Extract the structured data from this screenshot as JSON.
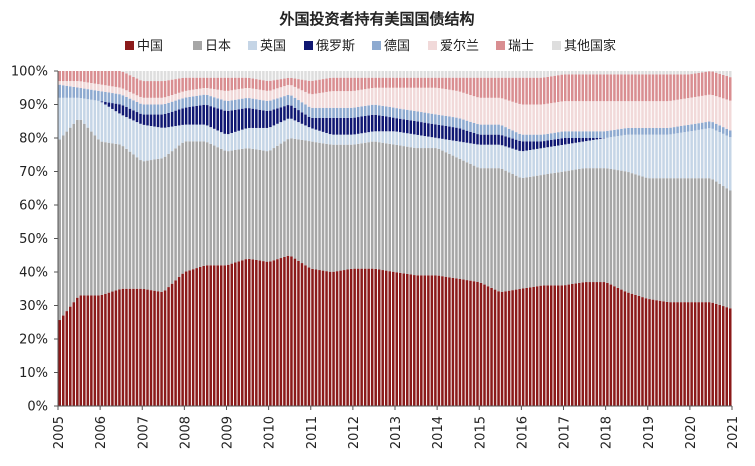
{
  "chart_data": {
    "type": "area",
    "stacked": true,
    "normalized_to": 100,
    "title": "外国投资者持有美国国债结构",
    "legend_position": "top",
    "x_ticks": [
      "2005",
      "2006",
      "2007",
      "2008",
      "2009",
      "2010",
      "2011",
      "2012",
      "2013",
      "2014",
      "2015",
      "2016",
      "2017",
      "2018",
      "2019",
      "2020",
      "2021"
    ],
    "y_ticks": [
      "0%",
      "10%",
      "20%",
      "30%",
      "40%",
      "50%",
      "60%",
      "70%",
      "80%",
      "90%",
      "100%"
    ],
    "ylim": [
      0,
      100
    ],
    "x": [
      2005.0,
      2005.5,
      2006.0,
      2006.5,
      2007.0,
      2007.5,
      2008.0,
      2008.5,
      2009.0,
      2009.5,
      2010.0,
      2010.5,
      2011.0,
      2011.5,
      2012.0,
      2012.5,
      2013.0,
      2013.5,
      2014.0,
      2014.5,
      2015.0,
      2015.5,
      2016.0,
      2016.5,
      2017.0,
      2017.5,
      2018.0,
      2018.5,
      2019.0,
      2019.5,
      2020.0,
      2020.5,
      2021.0
    ],
    "series": [
      {
        "name": "中国",
        "color": "#8b1a1a",
        "values": [
          25,
          33,
          33,
          35,
          35,
          34,
          40,
          42,
          42,
          44,
          43,
          45,
          41,
          40,
          41,
          41,
          40,
          39,
          39,
          38,
          37,
          34,
          35,
          36,
          36,
          37,
          37,
          34,
          32,
          31,
          31,
          31,
          29
        ]
      },
      {
        "name": "日本",
        "color": "#a6a6a6",
        "values": [
          54,
          53,
          46,
          43,
          38,
          40,
          39,
          37,
          34,
          33,
          33,
          35,
          38,
          38,
          37,
          38,
          38,
          38,
          38,
          36,
          34,
          37,
          33,
          33,
          34,
          34,
          34,
          36,
          36,
          37,
          37,
          37,
          35
        ]
      },
      {
        "name": "英国",
        "color": "#c5d5e6",
        "values": [
          13,
          6,
          12,
          9,
          11,
          9,
          5,
          5,
          5,
          6,
          7,
          6,
          4,
          3,
          3,
          3,
          4,
          4,
          3,
          5,
          7,
          7,
          8,
          8,
          8,
          8,
          9,
          11,
          13,
          13,
          14,
          15,
          16
        ]
      },
      {
        "name": "俄罗斯",
        "color": "#0f1772",
        "values": [
          0,
          0,
          0,
          3,
          3,
          4,
          5,
          6,
          7,
          6,
          5,
          4,
          3,
          5,
          5,
          5,
          4,
          4,
          4,
          4,
          3,
          3,
          3,
          2,
          2,
          1,
          0,
          0,
          0,
          0,
          0,
          0,
          0
        ]
      },
      {
        "name": "德国",
        "color": "#8eaad0",
        "values": [
          4,
          3,
          3,
          3,
          3,
          3,
          3,
          3,
          3,
          3,
          3,
          3,
          3,
          3,
          3,
          3,
          3,
          3,
          3,
          3,
          3,
          3,
          2,
          2,
          2,
          2,
          2,
          2,
          2,
          2,
          2,
          2,
          2
        ]
      },
      {
        "name": "爱尔兰",
        "color": "#f1d9d9",
        "values": [
          1,
          2,
          2,
          2,
          2,
          2,
          2,
          2,
          3,
          3,
          3,
          3,
          4,
          5,
          5,
          5,
          6,
          7,
          8,
          8,
          8,
          8,
          9,
          9,
          9,
          9,
          9,
          8,
          8,
          8,
          8,
          8,
          9
        ]
      },
      {
        "name": "瑞士",
        "color": "#d98e91",
        "values": [
          3,
          3,
          4,
          5,
          5,
          5,
          4,
          3,
          4,
          3,
          3,
          2,
          4,
          4,
          4,
          3,
          3,
          3,
          3,
          4,
          6,
          6,
          8,
          8,
          8,
          8,
          8,
          8,
          8,
          8,
          7,
          7,
          7
        ]
      },
      {
        "name": "其他国家",
        "color": "#dedede",
        "values": [
          0,
          0,
          0,
          0,
          3,
          3,
          2,
          2,
          2,
          2,
          3,
          2,
          3,
          2,
          2,
          2,
          2,
          2,
          2,
          2,
          2,
          2,
          2,
          2,
          1,
          1,
          1,
          1,
          1,
          1,
          1,
          0,
          2
        ]
      }
    ]
  }
}
